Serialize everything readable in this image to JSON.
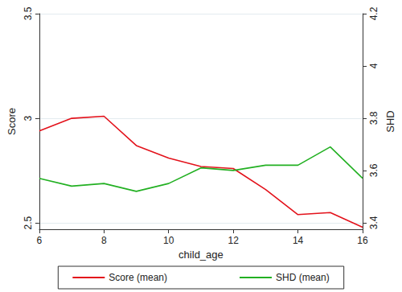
{
  "chart_data": {
    "type": "line",
    "x_label": "child_age",
    "y_label": "Score",
    "y2_label": "SHD",
    "x": [
      6,
      7,
      8,
      9,
      10,
      11,
      12,
      13,
      14,
      15,
      16
    ],
    "series": [
      {
        "name": "Score (mean)",
        "color": "#e3121b",
        "axis": "y",
        "values": [
          2.94,
          3.0,
          3.01,
          2.87,
          2.81,
          2.77,
          2.76,
          2.66,
          2.54,
          2.55,
          2.48
        ]
      },
      {
        "name": "SHD (mean)",
        "color": "#22b022",
        "axis": "y2",
        "values": [
          3.57,
          3.54,
          3.55,
          3.52,
          3.55,
          3.61,
          3.6,
          3.62,
          3.62,
          3.69,
          3.57
        ]
      }
    ],
    "xlim": [
      6,
      16
    ],
    "xticks": [
      6,
      8,
      10,
      12,
      14,
      16
    ],
    "ylim": [
      2.47,
      3.5
    ],
    "yticks": [
      2.5,
      3,
      3.5
    ],
    "y2lim": [
      3.375,
      4.2
    ],
    "y2ticks": [
      3.4,
      3.6,
      3.8,
      4,
      4.2
    ],
    "grid": true,
    "legend": "bottom"
  }
}
